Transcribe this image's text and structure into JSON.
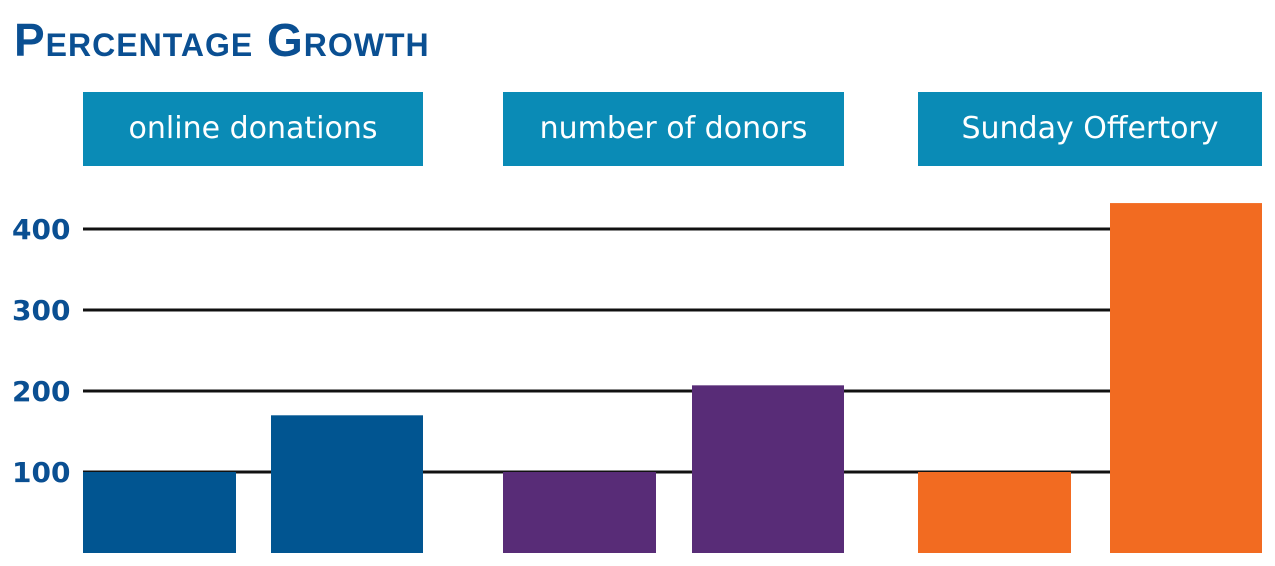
{
  "title": "Percentage Growth",
  "colors": {
    "title": "#0a4f92",
    "category_box": "#0a8bb6",
    "category_text": "#ffffff",
    "gridline": "#111111",
    "online_donations": "#015591",
    "number_of_donors": "#582c77",
    "sunday_offertory": "#f26b21"
  },
  "chart_data": {
    "type": "bar",
    "title": "Percentage Growth",
    "categories": [
      "online donations",
      "number of donors",
      "Sunday Offertory"
    ],
    "values": [
      [
        100,
        170
      ],
      [
        100,
        207
      ],
      [
        100,
        432
      ]
    ],
    "yticks": [
      100,
      200,
      300,
      400
    ],
    "ylim": [
      0,
      432
    ],
    "grid": true,
    "xlabel": "",
    "ylabel": ""
  }
}
